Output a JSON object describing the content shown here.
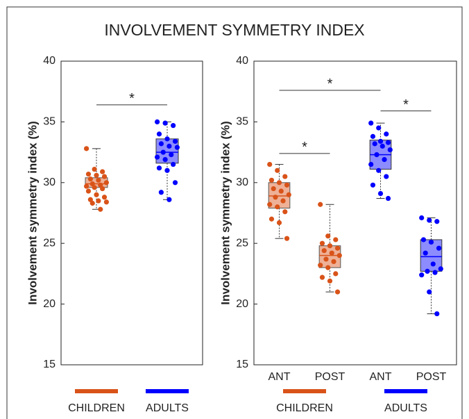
{
  "title": "INVOLVEMENT SYMMETRY INDEX",
  "chart_data": [
    {
      "type": "box",
      "ylabel": "Involvement symmetry index (%)",
      "ylim": [
        15,
        40
      ],
      "yticks": [
        15,
        20,
        25,
        30,
        35,
        40
      ],
      "groups": [
        {
          "name": "CHILDREN",
          "color": "#d95319"
        },
        {
          "name": "ADULTS",
          "color": "#0000ff"
        }
      ],
      "boxes": [
        {
          "color": "#d95319",
          "whisker_low": 27.8,
          "q1": 29.6,
          "median": 29.9,
          "q3": 30.4,
          "whisker_high": 32.8,
          "points": [
            32.8,
            31.1,
            30.9,
            30.7,
            30.6,
            30.5,
            30.3,
            30.2,
            30.0,
            29.9,
            29.8,
            29.7,
            29.6,
            29.5,
            29.3,
            29.0,
            28.8,
            28.6,
            28.5,
            28.4,
            28.3,
            27.8
          ]
        },
        {
          "color": "#0000ff",
          "whisker_low": 28.6,
          "q1": 31.6,
          "median": 32.5,
          "q3": 33.6,
          "whisker_high": 35.0,
          "points": [
            35.0,
            34.9,
            34.7,
            34.0,
            33.6,
            33.4,
            33.2,
            33.0,
            32.9,
            32.5,
            32.3,
            32.1,
            31.9,
            31.5,
            31.2,
            31.0,
            30.0,
            29.2,
            28.6
          ]
        }
      ],
      "annotations": [
        {
          "text": "*",
          "between": [
            0,
            1
          ],
          "y": 36.4
        }
      ]
    },
    {
      "type": "box",
      "ylabel": "Involvement symmetry index (%)",
      "ylim": [
        15,
        40
      ],
      "yticks": [
        15,
        20,
        25,
        30,
        35,
        40
      ],
      "categories": [
        "ANT",
        "POST",
        "ANT",
        "POST"
      ],
      "groups": [
        {
          "name": "CHILDREN",
          "color": "#d95319"
        },
        {
          "name": "ADULTS",
          "color": "#0000ff"
        }
      ],
      "boxes": [
        {
          "color": "#d95319",
          "whisker_low": 25.4,
          "q1": 27.9,
          "median": 28.9,
          "q3": 30.0,
          "whisker_high": 31.5,
          "points": [
            31.5,
            31.0,
            30.5,
            30.2,
            30.0,
            29.8,
            29.5,
            29.3,
            29.0,
            28.8,
            28.5,
            28.2,
            28.0,
            27.6,
            27.0,
            26.7,
            25.4
          ]
        },
        {
          "color": "#d95319",
          "whisker_low": 21.0,
          "q1": 23.0,
          "median": 24.0,
          "q3": 24.8,
          "whisker_high": 28.2,
          "points": [
            28.2,
            25.6,
            25.3,
            25.0,
            24.8,
            24.6,
            24.4,
            24.2,
            24.0,
            23.7,
            23.5,
            23.2,
            23.0,
            22.5,
            22.2,
            21.9,
            21.0
          ]
        },
        {
          "color": "#0000ff",
          "whisker_low": 28.7,
          "q1": 31.1,
          "median": 32.3,
          "q3": 33.5,
          "whisker_high": 34.9,
          "points": [
            34.9,
            34.5,
            34.0,
            33.8,
            33.4,
            33.3,
            33.2,
            33.0,
            32.7,
            32.3,
            31.9,
            31.5,
            31.0,
            30.5,
            29.8,
            29.1,
            28.7
          ]
        },
        {
          "color": "#0000ff",
          "whisker_low": 19.2,
          "q1": 22.7,
          "median": 23.9,
          "q3": 25.3,
          "whisker_high": 27.1,
          "points": [
            27.1,
            26.9,
            26.8,
            25.3,
            25.1,
            24.6,
            24.2,
            23.3,
            22.9,
            22.7,
            22.6,
            22.4,
            21.0,
            19.2
          ]
        }
      ],
      "annotations": [
        {
          "text": "*",
          "between": [
            0,
            2
          ],
          "y": 37.6
        },
        {
          "text": "*",
          "between": [
            0,
            1
          ],
          "y": 32.4
        },
        {
          "text": "*",
          "between": [
            2,
            3
          ],
          "y": 35.9
        }
      ]
    }
  ]
}
